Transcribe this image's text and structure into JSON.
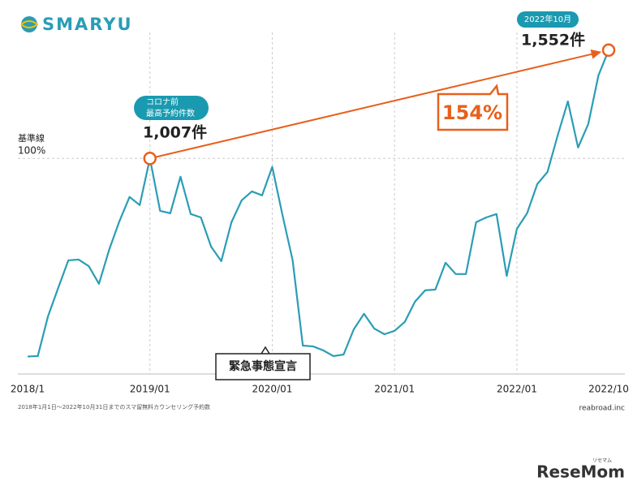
{
  "logo": "SMARYU",
  "chart_data": {
    "type": "line",
    "categories": [
      "2018/1",
      null,
      null,
      null,
      null,
      null,
      null,
      null,
      null,
      null,
      null,
      null,
      "2019/01",
      null,
      null,
      null,
      null,
      null,
      null,
      null,
      null,
      null,
      null,
      null,
      "2020/01",
      null,
      null,
      null,
      null,
      null,
      null,
      null,
      null,
      null,
      null,
      null,
      "2021/01",
      null,
      null,
      null,
      null,
      null,
      null,
      null,
      null,
      null,
      null,
      null,
      "2022/01",
      null,
      null,
      null,
      null,
      null,
      null,
      null,
      null,
      "2022/10"
    ],
    "series": [
      {
        "color": "#2a9db5",
        "values": [
          10,
          12,
          212,
          355,
          494,
          498,
          465,
          376,
          547,
          690,
          813,
          772,
          1007,
          743,
          731,
          915,
          727,
          710,
          563,
          490,
          686,
          796,
          841,
          821,
          964,
          723,
          494,
          65,
          61,
          41,
          12,
          20,
          147,
          225,
          151,
          122,
          139,
          184,
          286,
          343,
          347,
          482,
          425,
          425,
          686,
          710,
          727,
          416,
          653,
          731,
          878,
          939,
          1123,
          1294,
          1062,
          1180,
          1425,
          1552
        ]
      }
    ],
    "ylim": [
      -78,
      1641
    ],
    "reference_line": {
      "value": 1007,
      "title": "基準線",
      "label": "100%"
    },
    "annotations": {
      "pre_covid_pill": [
        "コロナ前",
        "最高予約件数"
      ],
      "pre_covid_value": "1,007件",
      "latest_pill": "2022年10月",
      "latest_value": "1,552件",
      "growth": "154%",
      "emergency": "緊急事態宣言"
    },
    "accent_color": "#e8601c",
    "footnote": "2018年1月1日～2022年10月31日までのスマ留無料カウンセリング予約数",
    "source": "reabroad.inc"
  },
  "watermark": {
    "name": "ReseMom",
    "kana": "リセマム"
  }
}
